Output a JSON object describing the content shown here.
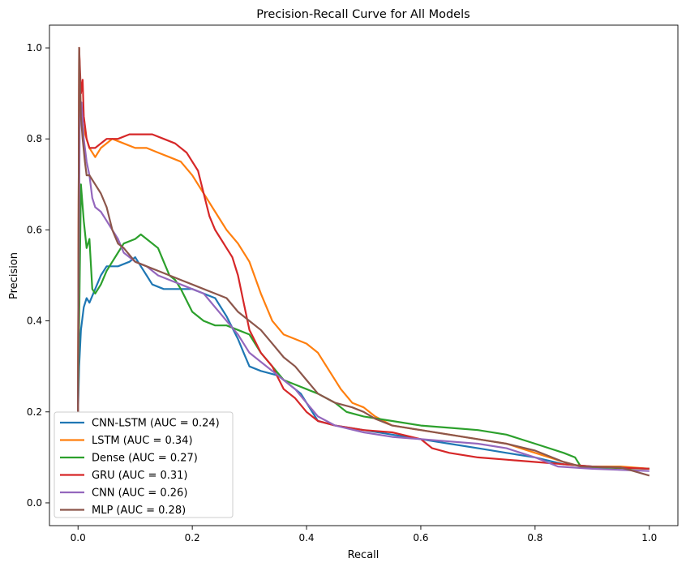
{
  "chart_data": {
    "type": "line",
    "title": "Precision-Recall Curve for All Models",
    "xlabel": "Recall",
    "ylabel": "Precision",
    "xlim": [
      -0.05,
      1.05
    ],
    "ylim": [
      -0.05,
      1.05
    ],
    "xticks": [
      0.0,
      0.2,
      0.4,
      0.6,
      0.8,
      1.0
    ],
    "xtick_labels": [
      "0.0",
      "0.2",
      "0.4",
      "0.6",
      "0.8",
      "1.0"
    ],
    "yticks": [
      0.0,
      0.2,
      0.4,
      0.6,
      0.8,
      1.0
    ],
    "ytick_labels": [
      "0.0",
      "0.2",
      "0.4",
      "0.6",
      "0.8",
      "1.0"
    ],
    "grid": false,
    "legend_position": "lower-left",
    "series": [
      {
        "name": "CNN-LSTM (AUC = 0.24)",
        "color": "#1f77b4",
        "points": [
          [
            0.0,
            0.2
          ],
          [
            0.002,
            0.3
          ],
          [
            0.005,
            0.38
          ],
          [
            0.01,
            0.43
          ],
          [
            0.015,
            0.45
          ],
          [
            0.02,
            0.44
          ],
          [
            0.03,
            0.47
          ],
          [
            0.04,
            0.5
          ],
          [
            0.05,
            0.52
          ],
          [
            0.07,
            0.52
          ],
          [
            0.09,
            0.53
          ],
          [
            0.1,
            0.54
          ],
          [
            0.11,
            0.52
          ],
          [
            0.12,
            0.5
          ],
          [
            0.13,
            0.48
          ],
          [
            0.15,
            0.47
          ],
          [
            0.18,
            0.47
          ],
          [
            0.2,
            0.47
          ],
          [
            0.22,
            0.46
          ],
          [
            0.24,
            0.45
          ],
          [
            0.26,
            0.41
          ],
          [
            0.28,
            0.36
          ],
          [
            0.29,
            0.33
          ],
          [
            0.3,
            0.3
          ],
          [
            0.32,
            0.29
          ],
          [
            0.35,
            0.28
          ],
          [
            0.37,
            0.26
          ],
          [
            0.39,
            0.24
          ],
          [
            0.4,
            0.22
          ],
          [
            0.42,
            0.18
          ],
          [
            0.45,
            0.17
          ],
          [
            0.5,
            0.16
          ],
          [
            0.55,
            0.15
          ],
          [
            0.6,
            0.14
          ],
          [
            0.65,
            0.13
          ],
          [
            0.7,
            0.12
          ],
          [
            0.75,
            0.11
          ],
          [
            0.8,
            0.1
          ],
          [
            0.85,
            0.085
          ],
          [
            0.9,
            0.08
          ],
          [
            0.95,
            0.078
          ],
          [
            1.0,
            0.075
          ]
        ]
      },
      {
        "name": "LSTM (AUC = 0.34)",
        "color": "#ff7f0e",
        "points": [
          [
            0.0,
            0.2
          ],
          [
            0.002,
            1.0
          ],
          [
            0.005,
            0.85
          ],
          [
            0.01,
            0.82
          ],
          [
            0.015,
            0.8
          ],
          [
            0.02,
            0.78
          ],
          [
            0.03,
            0.76
          ],
          [
            0.04,
            0.78
          ],
          [
            0.05,
            0.79
          ],
          [
            0.06,
            0.8
          ],
          [
            0.08,
            0.79
          ],
          [
            0.1,
            0.78
          ],
          [
            0.12,
            0.78
          ],
          [
            0.14,
            0.77
          ],
          [
            0.16,
            0.76
          ],
          [
            0.18,
            0.75
          ],
          [
            0.2,
            0.72
          ],
          [
            0.22,
            0.68
          ],
          [
            0.24,
            0.64
          ],
          [
            0.26,
            0.6
          ],
          [
            0.28,
            0.57
          ],
          [
            0.3,
            0.53
          ],
          [
            0.32,
            0.46
          ],
          [
            0.34,
            0.4
          ],
          [
            0.36,
            0.37
          ],
          [
            0.38,
            0.36
          ],
          [
            0.4,
            0.35
          ],
          [
            0.42,
            0.33
          ],
          [
            0.44,
            0.29
          ],
          [
            0.46,
            0.25
          ],
          [
            0.48,
            0.22
          ],
          [
            0.5,
            0.21
          ],
          [
            0.52,
            0.19
          ],
          [
            0.55,
            0.17
          ],
          [
            0.6,
            0.16
          ],
          [
            0.65,
            0.15
          ],
          [
            0.7,
            0.14
          ],
          [
            0.75,
            0.13
          ],
          [
            0.8,
            0.11
          ],
          [
            0.85,
            0.09
          ],
          [
            0.88,
            0.08
          ],
          [
            0.9,
            0.08
          ],
          [
            0.95,
            0.08
          ],
          [
            1.0,
            0.075
          ]
        ]
      },
      {
        "name": "Dense (AUC = 0.27)",
        "color": "#2ca02c",
        "points": [
          [
            0.0,
            0.2
          ],
          [
            0.005,
            0.7
          ],
          [
            0.01,
            0.62
          ],
          [
            0.015,
            0.56
          ],
          [
            0.02,
            0.58
          ],
          [
            0.025,
            0.47
          ],
          [
            0.03,
            0.46
          ],
          [
            0.04,
            0.48
          ],
          [
            0.05,
            0.51
          ],
          [
            0.06,
            0.53
          ],
          [
            0.07,
            0.55
          ],
          [
            0.08,
            0.57
          ],
          [
            0.1,
            0.58
          ],
          [
            0.11,
            0.59
          ],
          [
            0.12,
            0.58
          ],
          [
            0.14,
            0.56
          ],
          [
            0.15,
            0.53
          ],
          [
            0.16,
            0.5
          ],
          [
            0.17,
            0.49
          ],
          [
            0.18,
            0.47
          ],
          [
            0.2,
            0.42
          ],
          [
            0.22,
            0.4
          ],
          [
            0.24,
            0.39
          ],
          [
            0.26,
            0.39
          ],
          [
            0.28,
            0.38
          ],
          [
            0.3,
            0.37
          ],
          [
            0.32,
            0.33
          ],
          [
            0.34,
            0.3
          ],
          [
            0.36,
            0.27
          ],
          [
            0.38,
            0.26
          ],
          [
            0.4,
            0.25
          ],
          [
            0.42,
            0.24
          ],
          [
            0.45,
            0.22
          ],
          [
            0.47,
            0.2
          ],
          [
            0.5,
            0.19
          ],
          [
            0.55,
            0.18
          ],
          [
            0.6,
            0.17
          ],
          [
            0.65,
            0.165
          ],
          [
            0.7,
            0.16
          ],
          [
            0.75,
            0.15
          ],
          [
            0.8,
            0.13
          ],
          [
            0.85,
            0.11
          ],
          [
            0.87,
            0.1
          ],
          [
            0.88,
            0.08
          ],
          [
            0.9,
            0.078
          ],
          [
            1.0,
            0.075
          ]
        ]
      },
      {
        "name": "GRU (AUC = 0.31)",
        "color": "#d62728",
        "points": [
          [
            0.0,
            0.2
          ],
          [
            0.002,
            1.0
          ],
          [
            0.005,
            0.9
          ],
          [
            0.008,
            0.93
          ],
          [
            0.01,
            0.85
          ],
          [
            0.015,
            0.8
          ],
          [
            0.02,
            0.78
          ],
          [
            0.03,
            0.78
          ],
          [
            0.04,
            0.79
          ],
          [
            0.05,
            0.8
          ],
          [
            0.07,
            0.8
          ],
          [
            0.09,
            0.81
          ],
          [
            0.11,
            0.81
          ],
          [
            0.13,
            0.81
          ],
          [
            0.15,
            0.8
          ],
          [
            0.17,
            0.79
          ],
          [
            0.19,
            0.77
          ],
          [
            0.21,
            0.73
          ],
          [
            0.22,
            0.68
          ],
          [
            0.23,
            0.63
          ],
          [
            0.24,
            0.6
          ],
          [
            0.25,
            0.58
          ],
          [
            0.26,
            0.56
          ],
          [
            0.27,
            0.54
          ],
          [
            0.28,
            0.5
          ],
          [
            0.29,
            0.44
          ],
          [
            0.3,
            0.38
          ],
          [
            0.32,
            0.33
          ],
          [
            0.34,
            0.3
          ],
          [
            0.36,
            0.25
          ],
          [
            0.38,
            0.23
          ],
          [
            0.4,
            0.2
          ],
          [
            0.42,
            0.18
          ],
          [
            0.45,
            0.17
          ],
          [
            0.5,
            0.16
          ],
          [
            0.55,
            0.155
          ],
          [
            0.6,
            0.14
          ],
          [
            0.62,
            0.12
          ],
          [
            0.65,
            0.11
          ],
          [
            0.7,
            0.1
          ],
          [
            0.75,
            0.095
          ],
          [
            0.8,
            0.09
          ],
          [
            0.85,
            0.085
          ],
          [
            0.9,
            0.08
          ],
          [
            1.0,
            0.075
          ]
        ]
      },
      {
        "name": "CNN (AUC = 0.26)",
        "color": "#9467bd",
        "points": [
          [
            0.0,
            0.2
          ],
          [
            0.003,
            0.85
          ],
          [
            0.006,
            0.88
          ],
          [
            0.01,
            0.8
          ],
          [
            0.015,
            0.75
          ],
          [
            0.02,
            0.72
          ],
          [
            0.025,
            0.67
          ],
          [
            0.03,
            0.65
          ],
          [
            0.04,
            0.64
          ],
          [
            0.05,
            0.62
          ],
          [
            0.06,
            0.6
          ],
          [
            0.07,
            0.58
          ],
          [
            0.08,
            0.55
          ],
          [
            0.1,
            0.53
          ],
          [
            0.12,
            0.52
          ],
          [
            0.14,
            0.5
          ],
          [
            0.16,
            0.49
          ],
          [
            0.18,
            0.48
          ],
          [
            0.2,
            0.47
          ],
          [
            0.22,
            0.46
          ],
          [
            0.24,
            0.43
          ],
          [
            0.26,
            0.4
          ],
          [
            0.28,
            0.37
          ],
          [
            0.3,
            0.33
          ],
          [
            0.32,
            0.31
          ],
          [
            0.34,
            0.29
          ],
          [
            0.36,
            0.27
          ],
          [
            0.38,
            0.25
          ],
          [
            0.4,
            0.22
          ],
          [
            0.42,
            0.19
          ],
          [
            0.45,
            0.17
          ],
          [
            0.5,
            0.155
          ],
          [
            0.55,
            0.145
          ],
          [
            0.6,
            0.14
          ],
          [
            0.65,
            0.135
          ],
          [
            0.7,
            0.13
          ],
          [
            0.75,
            0.12
          ],
          [
            0.8,
            0.1
          ],
          [
            0.84,
            0.08
          ],
          [
            0.9,
            0.075
          ],
          [
            1.0,
            0.07
          ]
        ]
      },
      {
        "name": "MLP (AUC = 0.28)",
        "color": "#8c564b",
        "points": [
          [
            0.0,
            0.2
          ],
          [
            0.002,
            1.0
          ],
          [
            0.005,
            0.85
          ],
          [
            0.008,
            0.8
          ],
          [
            0.012,
            0.75
          ],
          [
            0.015,
            0.72
          ],
          [
            0.02,
            0.72
          ],
          [
            0.03,
            0.7
          ],
          [
            0.04,
            0.68
          ],
          [
            0.05,
            0.65
          ],
          [
            0.06,
            0.6
          ],
          [
            0.07,
            0.57
          ],
          [
            0.08,
            0.56
          ],
          [
            0.1,
            0.53
          ],
          [
            0.12,
            0.52
          ],
          [
            0.14,
            0.51
          ],
          [
            0.16,
            0.5
          ],
          [
            0.18,
            0.49
          ],
          [
            0.2,
            0.48
          ],
          [
            0.22,
            0.47
          ],
          [
            0.24,
            0.46
          ],
          [
            0.26,
            0.45
          ],
          [
            0.28,
            0.42
          ],
          [
            0.3,
            0.4
          ],
          [
            0.32,
            0.38
          ],
          [
            0.34,
            0.35
          ],
          [
            0.36,
            0.32
          ],
          [
            0.38,
            0.3
          ],
          [
            0.4,
            0.27
          ],
          [
            0.42,
            0.24
          ],
          [
            0.45,
            0.22
          ],
          [
            0.48,
            0.21
          ],
          [
            0.5,
            0.2
          ],
          [
            0.52,
            0.185
          ],
          [
            0.55,
            0.17
          ],
          [
            0.6,
            0.16
          ],
          [
            0.65,
            0.15
          ],
          [
            0.7,
            0.14
          ],
          [
            0.75,
            0.13
          ],
          [
            0.8,
            0.115
          ],
          [
            0.85,
            0.09
          ],
          [
            0.88,
            0.08
          ],
          [
            0.95,
            0.078
          ],
          [
            1.0,
            0.06
          ]
        ]
      }
    ]
  }
}
